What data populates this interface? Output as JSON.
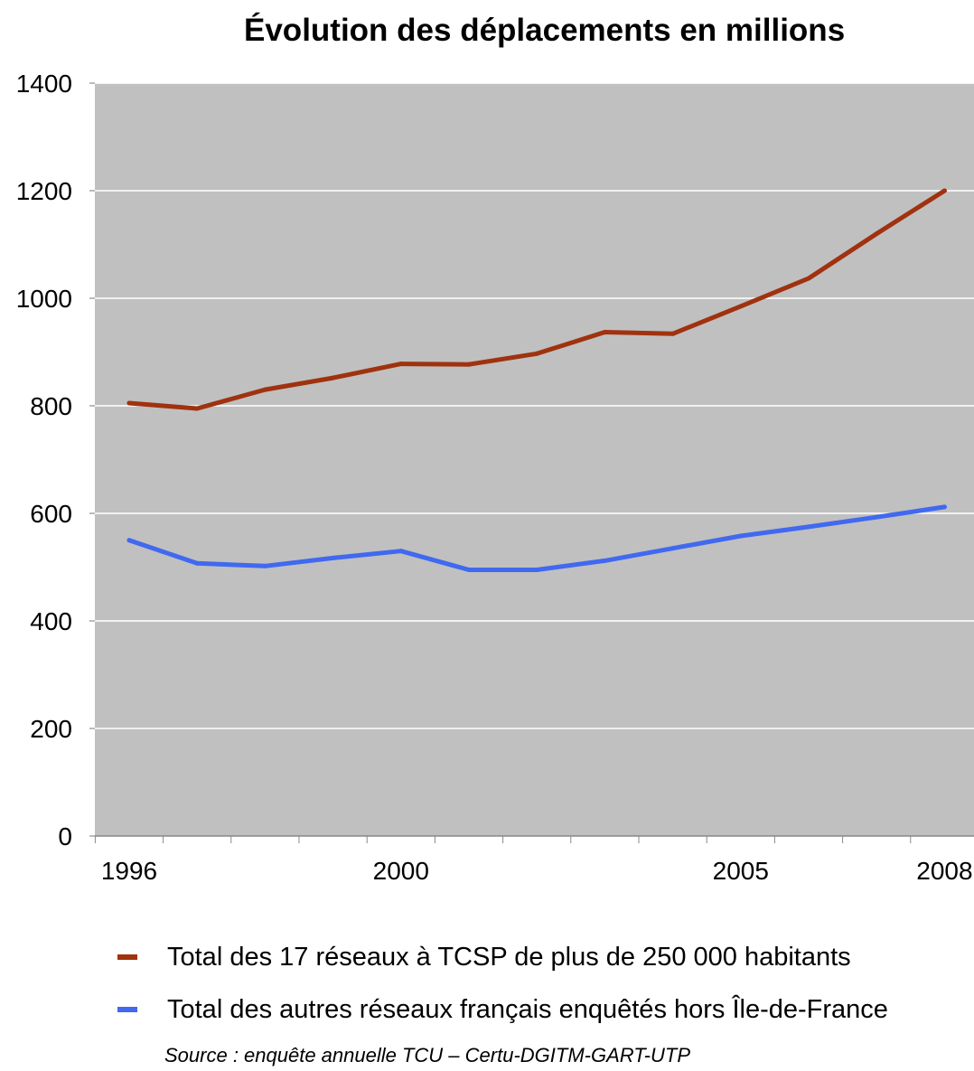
{
  "chart_data": {
    "type": "line",
    "title": "Évolution des déplacements en millions",
    "xlabel": "",
    "ylabel": "",
    "x": [
      1996,
      1997,
      1998,
      1999,
      2000,
      2001,
      2002,
      2003,
      2004,
      2005,
      2006,
      2007,
      2008
    ],
    "xticks": [
      1996,
      2000,
      2005,
      2008
    ],
    "ylim": [
      0,
      1400
    ],
    "yticks": [
      0,
      200,
      400,
      600,
      800,
      1000,
      1200,
      1400
    ],
    "grid": true,
    "legend_position": "bottom",
    "series": [
      {
        "name": "Total des 17 réseaux à TCSP de plus de 250 000 habitants",
        "color": "#A0320F",
        "values": [
          805,
          795,
          830,
          852,
          878,
          877,
          897,
          937,
          934,
          985,
          1037,
          1120,
          1200
        ]
      },
      {
        "name": "Total des autres réseaux français enquêtés hors Île-de-France",
        "color": "#4169F0",
        "values": [
          550,
          507,
          502,
          517,
          530,
          495,
          495,
          512,
          535,
          558,
          575,
          593,
          612
        ]
      }
    ],
    "source": "Source : enquête annuelle TCU – Certu-DGITM-GART-UTP"
  }
}
